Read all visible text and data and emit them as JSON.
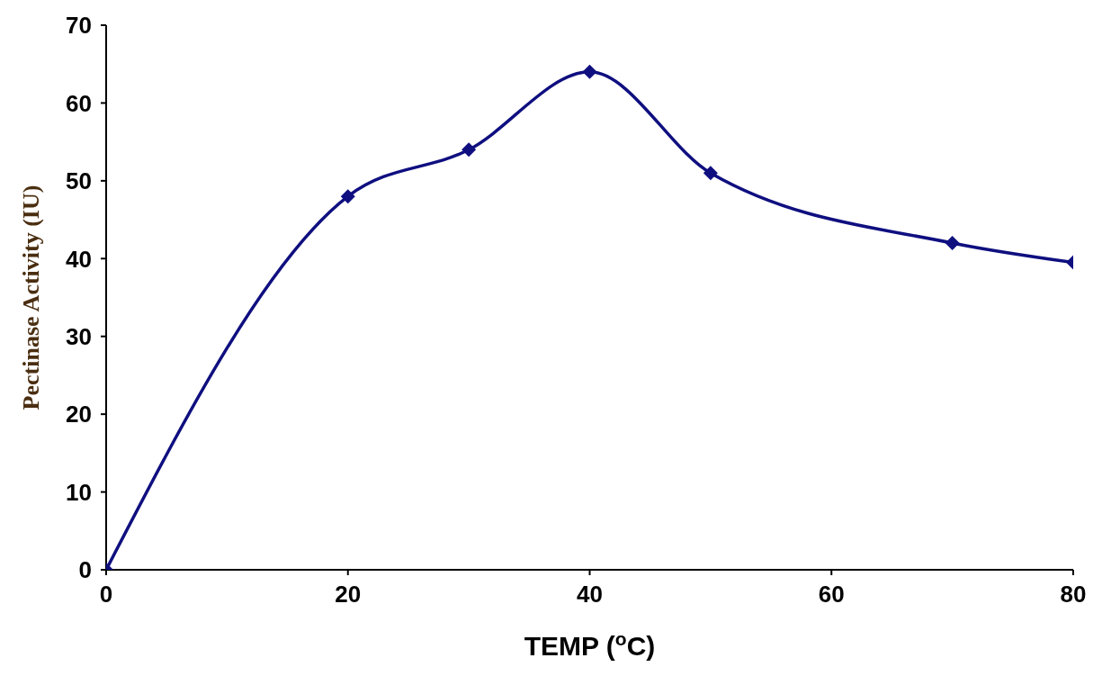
{
  "chart_data": {
    "type": "line",
    "xlabel": "TEMP  ($^{o}$C)",
    "ylabel": "Pectinase Activity (IU)",
    "x": [
      0,
      20,
      30,
      40,
      50,
      70,
      80
    ],
    "series": [
      {
        "color": "#0f0f80",
        "values": [
          0,
          48,
          54,
          64,
          51,
          42,
          39.5
        ]
      }
    ],
    "xlim": [
      0,
      80
    ],
    "xticks": [
      0,
      20,
      40,
      60,
      80
    ],
    "ylim": [
      0,
      70
    ],
    "yticks": [
      0,
      10,
      20,
      30,
      40,
      50,
      60,
      70
    ],
    "grid": false,
    "legend": false,
    "marker": "diamond",
    "line_style": "solid"
  }
}
